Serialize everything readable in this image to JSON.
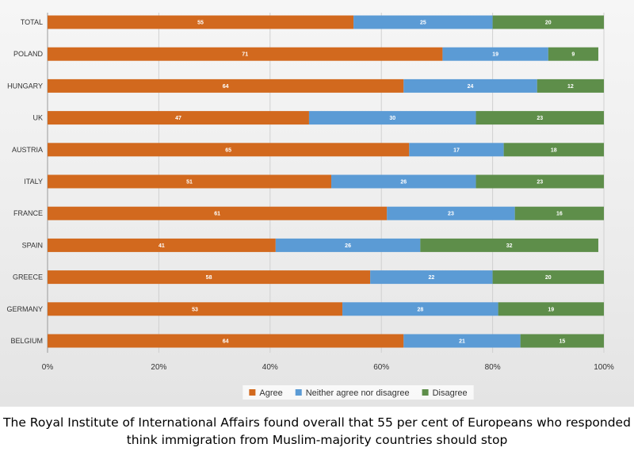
{
  "chart_data": {
    "type": "bar",
    "orientation": "horizontal",
    "stacked": true,
    "categories": [
      "TOTAL",
      "POLAND",
      "HUNGARY",
      "UK",
      "AUSTRIA",
      "ITALY",
      "FRANCE",
      "SPAIN",
      "GREECE",
      "GERMANY",
      "BELGIUM"
    ],
    "series": [
      {
        "name": "Agree",
        "color": "#d2691e",
        "values": [
          55,
          71,
          64,
          47,
          65,
          51,
          61,
          41,
          58,
          53,
          64
        ]
      },
      {
        "name": "Neither agree nor disagree",
        "color": "#5b9bd5",
        "values": [
          25,
          19,
          24,
          30,
          17,
          26,
          23,
          26,
          22,
          28,
          21
        ]
      },
      {
        "name": "Disagree",
        "color": "#5e8e4a",
        "values": [
          20,
          9,
          12,
          23,
          18,
          23,
          16,
          32,
          20,
          19,
          15
        ]
      }
    ],
    "xlim": [
      0,
      100
    ],
    "x_ticks": [
      "0%",
      "20%",
      "40%",
      "60%",
      "80%",
      "100%"
    ],
    "x_tick_values": [
      0,
      20,
      40,
      60,
      80,
      100
    ],
    "grid": "vertical",
    "legend_position": "bottom-center"
  },
  "caption": "The Royal Institute of International Affairs found overall that 55 per cent of Europeans who responded think immigration from Muslim-majority countries should stop"
}
